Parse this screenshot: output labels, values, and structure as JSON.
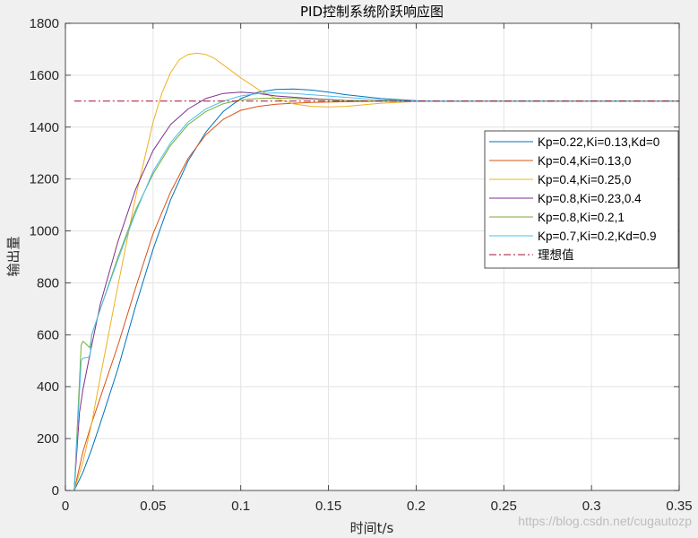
{
  "chart_data": {
    "type": "line",
    "title": "PID控制系统阶跃响应图",
    "xlabel": "时间t/s",
    "ylabel": "输出量",
    "xlim": [
      0,
      0.35
    ],
    "ylim": [
      0,
      1800
    ],
    "xticks": [
      0,
      0.05,
      0.1,
      0.15,
      0.2,
      0.25,
      0.3,
      0.35
    ],
    "xtick_labels": [
      "0",
      "0.05",
      "0.1",
      "0.15",
      "0.2",
      "0.25",
      "0.3",
      "0.35"
    ],
    "yticks": [
      0,
      200,
      400,
      600,
      800,
      1000,
      1200,
      1400,
      1600,
      1800
    ],
    "ytick_labels": [
      "0",
      "200",
      "400",
      "600",
      "800",
      "1000",
      "1200",
      "1400",
      "1600",
      "1800"
    ],
    "grid": true,
    "legend_position": "right",
    "series": [
      {
        "name": "Kp=0.22,Ki=0.13,Kd=0",
        "color": "#0072bd",
        "dash": "",
        "x": [
          0.005,
          0.01,
          0.015,
          0.02,
          0.03,
          0.04,
          0.05,
          0.06,
          0.07,
          0.08,
          0.09,
          0.1,
          0.11,
          0.12,
          0.13,
          0.14,
          0.15,
          0.16,
          0.18,
          0.2,
          0.22,
          0.25,
          0.3,
          0.35
        ],
        "y": [
          0,
          70,
          160,
          260,
          470,
          710,
          930,
          1120,
          1270,
          1380,
          1460,
          1510,
          1535,
          1545,
          1547,
          1543,
          1535,
          1525,
          1510,
          1502,
          1500,
          1500,
          1500,
          1500
        ]
      },
      {
        "name": "Kp=0.4,Ki=0.13,0",
        "color": "#d95319",
        "dash": "",
        "x": [
          0.005,
          0.01,
          0.015,
          0.02,
          0.03,
          0.04,
          0.05,
          0.06,
          0.07,
          0.08,
          0.09,
          0.1,
          0.11,
          0.12,
          0.13,
          0.14,
          0.16,
          0.18,
          0.2,
          0.25,
          0.3,
          0.35
        ],
        "y": [
          0,
          150,
          260,
          360,
          560,
          780,
          990,
          1150,
          1280,
          1370,
          1430,
          1465,
          1480,
          1488,
          1492,
          1495,
          1498,
          1500,
          1500,
          1500,
          1500,
          1500
        ]
      },
      {
        "name": "Kp=0.4,Ki=0.25,0",
        "color": "#edb120",
        "dash": "",
        "x": [
          0.005,
          0.01,
          0.015,
          0.02,
          0.03,
          0.04,
          0.05,
          0.055,
          0.06,
          0.065,
          0.07,
          0.075,
          0.08,
          0.085,
          0.09,
          0.1,
          0.11,
          0.12,
          0.13,
          0.14,
          0.15,
          0.16,
          0.17,
          0.18,
          0.2,
          0.22,
          0.25,
          0.3,
          0.35
        ],
        "y": [
          0,
          110,
          260,
          440,
          790,
          1130,
          1420,
          1530,
          1610,
          1660,
          1680,
          1685,
          1680,
          1665,
          1640,
          1590,
          1545,
          1510,
          1490,
          1480,
          1478,
          1480,
          1486,
          1492,
          1499,
          1501,
          1500,
          1500,
          1500
        ]
      },
      {
        "name": "Kp=0.8,Ki=0.23,0.4",
        "color": "#7e2f8e",
        "dash": "",
        "x": [
          0.005,
          0.008,
          0.01,
          0.015,
          0.02,
          0.03,
          0.04,
          0.05,
          0.06,
          0.07,
          0.08,
          0.09,
          0.1,
          0.11,
          0.12,
          0.14,
          0.16,
          0.18,
          0.2,
          0.25,
          0.3,
          0.35
        ],
        "y": [
          0,
          300,
          390,
          560,
          720,
          960,
          1160,
          1310,
          1410,
          1470,
          1510,
          1530,
          1535,
          1530,
          1520,
          1510,
          1503,
          1500,
          1500,
          1500,
          1500,
          1500
        ]
      },
      {
        "name": "Kp=0.8,Ki=0.2,1",
        "color": "#77ac30",
        "dash": "",
        "x": [
          0.005,
          0.009,
          0.01,
          0.014,
          0.015,
          0.02,
          0.03,
          0.04,
          0.05,
          0.06,
          0.07,
          0.08,
          0.09,
          0.1,
          0.11,
          0.12,
          0.14,
          0.16,
          0.18,
          0.2,
          0.25,
          0.3,
          0.35
        ],
        "y": [
          0,
          560,
          575,
          550,
          600,
          700,
          900,
          1080,
          1220,
          1330,
          1410,
          1460,
          1490,
          1505,
          1510,
          1512,
          1508,
          1503,
          1500,
          1500,
          1500,
          1500,
          1500
        ]
      },
      {
        "name": "Kp=0.7,Ki=0.2,Kd=0.9",
        "color": "#4dbeee",
        "dash": "",
        "x": [
          0.005,
          0.009,
          0.01,
          0.014,
          0.015,
          0.02,
          0.03,
          0.04,
          0.05,
          0.06,
          0.07,
          0.08,
          0.09,
          0.1,
          0.11,
          0.12,
          0.13,
          0.14,
          0.16,
          0.18,
          0.2,
          0.25,
          0.3,
          0.35
        ],
        "y": [
          0,
          500,
          510,
          515,
          600,
          700,
          890,
          1070,
          1230,
          1340,
          1420,
          1470,
          1500,
          1520,
          1530,
          1532,
          1530,
          1525,
          1515,
          1505,
          1501,
          1500,
          1500,
          1500
        ]
      },
      {
        "name": "理想值",
        "color": "#a2142f",
        "dash": "8,3,2,3",
        "x": [
          0.005,
          0.35
        ],
        "y": [
          1500,
          1500
        ]
      }
    ]
  },
  "watermark": "https://blog.csdn.net/cugautozp"
}
